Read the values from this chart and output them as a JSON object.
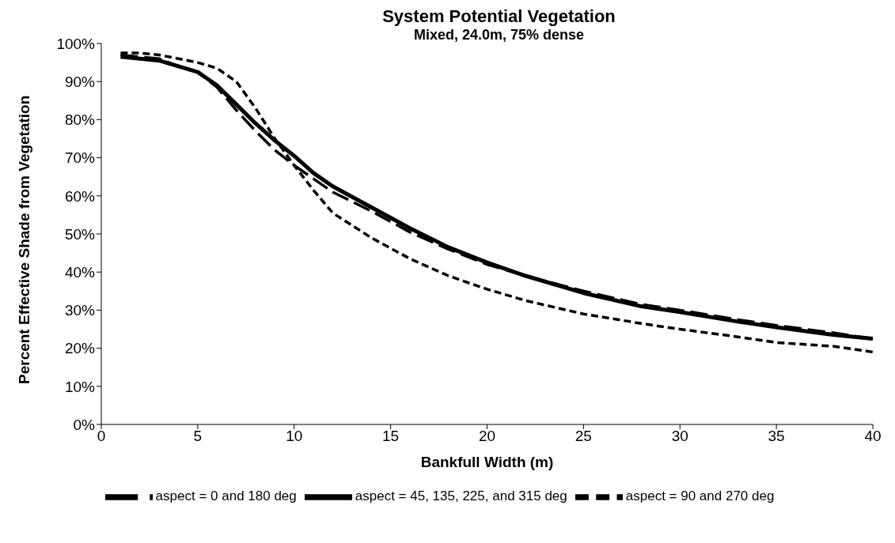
{
  "chart_data": {
    "type": "line",
    "title": "System Potential Vegetation",
    "subtitle": "Mixed, 24.0m, 75% dense",
    "xlabel": "Bankfull Width (m)",
    "ylabel": "Percent Effective Shade from Vegetation",
    "x": [
      1,
      2,
      3,
      4,
      5,
      6,
      7,
      8,
      9,
      10,
      11,
      12,
      14,
      16,
      18,
      20,
      22,
      25,
      28,
      30,
      33,
      35,
      38,
      40
    ],
    "series": [
      {
        "name": "aspect = 0 and 180 deg",
        "color": "#000000",
        "line_style": "dashed",
        "values": [
          97,
          96.5,
          96,
          94,
          92.5,
          88.5,
          82.5,
          77,
          72,
          68,
          64.5,
          61,
          56,
          50.5,
          46,
          42,
          39,
          35,
          31.5,
          30,
          27.5,
          26,
          24,
          22.5
        ]
      },
      {
        "name": "aspect = 45, 135, 225, and 315 deg",
        "color": "#000000",
        "line_style": "solid",
        "values": [
          96.5,
          96,
          95.5,
          94,
          92.5,
          89,
          84,
          79,
          74.5,
          70.5,
          66,
          62.5,
          57,
          51.5,
          46.5,
          42.5,
          39,
          34.5,
          31,
          29.5,
          27,
          25.5,
          23.5,
          22.5
        ]
      },
      {
        "name": "aspect = 90 and 270 deg",
        "color": "#000000",
        "line_style": "dotted",
        "values": [
          97.5,
          97.5,
          97,
          96,
          95,
          93.5,
          90,
          83,
          75,
          68,
          61.5,
          55.5,
          49,
          43.5,
          39,
          35.5,
          32.5,
          29,
          26.5,
          25,
          23,
          21.5,
          20.5,
          19
        ]
      }
    ],
    "xlim": [
      0,
      40
    ],
    "xticks": [
      0,
      5,
      10,
      15,
      20,
      25,
      30,
      35,
      40
    ],
    "ylim": [
      0,
      100
    ],
    "yticks": [
      {
        "value": 0,
        "label": "0%"
      },
      {
        "value": 10,
        "label": "10%"
      },
      {
        "value": 20,
        "label": "20%"
      },
      {
        "value": 30,
        "label": "30%"
      },
      {
        "value": 40,
        "label": "40%"
      },
      {
        "value": 50,
        "label": "50%"
      },
      {
        "value": 60,
        "label": "60%"
      },
      {
        "value": 70,
        "label": "70%"
      },
      {
        "value": 80,
        "label": "80%"
      },
      {
        "value": 90,
        "label": "90%"
      },
      {
        "value": 100,
        "label": "100%"
      }
    ],
    "grid": false,
    "legend": "bottom",
    "marker": "none"
  }
}
